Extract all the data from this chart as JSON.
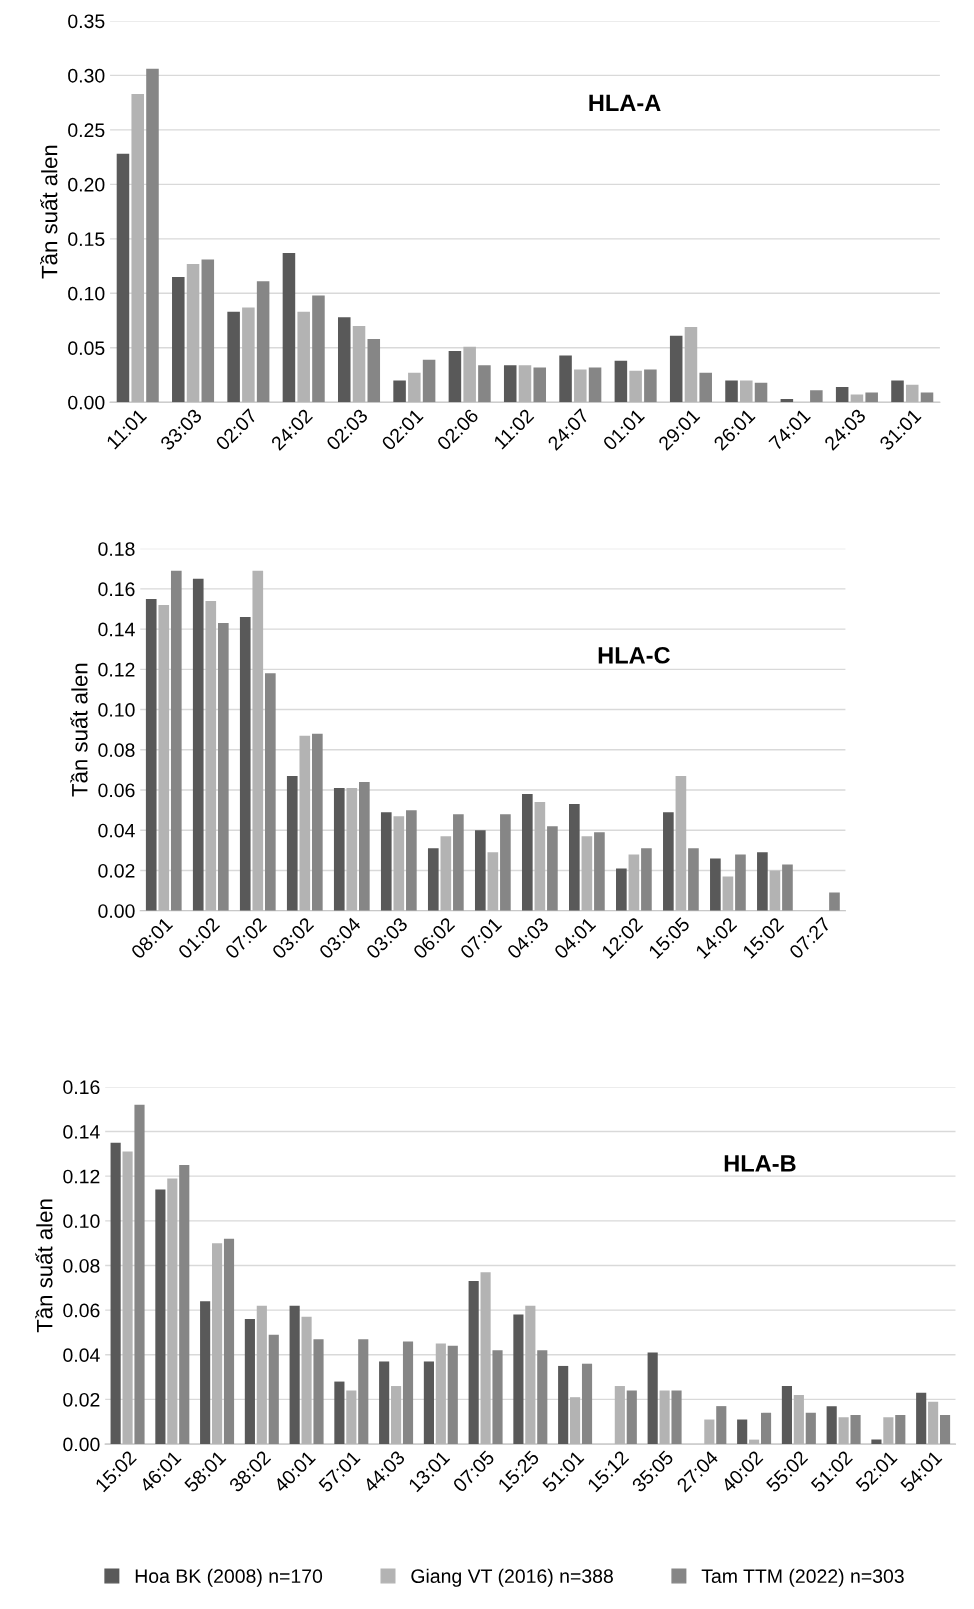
{
  "chart_data": [
    {
      "type": "bar",
      "title": "HLA-A",
      "ylabel": "Tần suất alen",
      "categories": [
        "11:01",
        "33:03",
        "02:07",
        "24:02",
        "02:03",
        "02:01",
        "02:06",
        "11:02",
        "24:07",
        "01:01",
        "29:01",
        "26:01",
        "74:01",
        "24:03",
        "31:01"
      ],
      "series": [
        {
          "color": "#595959",
          "values": [
            0.228,
            0.115,
            0.083,
            0.137,
            0.078,
            0.02,
            0.047,
            0.034,
            0.043,
            0.038,
            0.061,
            0.02,
            0.003,
            0.014,
            0.02
          ]
        },
        {
          "color": "#b3b3b3",
          "values": [
            0.283,
            0.127,
            0.087,
            0.083,
            0.07,
            0.027,
            0.051,
            0.034,
            0.03,
            0.029,
            0.069,
            0.02,
            null,
            0.007,
            0.016
          ]
        },
        {
          "color": "#868686",
          "values": [
            0.306,
            0.131,
            0.111,
            0.098,
            0.058,
            0.039,
            0.034,
            0.032,
            0.032,
            0.03,
            0.027,
            0.018,
            0.011,
            0.009,
            0.009
          ]
        }
      ],
      "ylim": [
        0,
        0.35
      ],
      "yticks": [
        {
          "value": 0,
          "label": "0.00"
        },
        {
          "value": 0.05,
          "label": "0.05"
        },
        {
          "value": 0.1,
          "label": "0.10"
        },
        {
          "value": 0.15,
          "label": "0.15"
        },
        {
          "value": 0.2,
          "label": "0.20"
        },
        {
          "value": 0.25,
          "label": "0.25"
        },
        {
          "value": 0.3,
          "label": "0.30"
        },
        {
          "value": 0.35,
          "label": "0.35"
        }
      ],
      "grid": "y",
      "legend": false
    },
    {
      "type": "bar",
      "title": "HLA-C",
      "ylabel": "Tần suất alen",
      "categories": [
        "08:01",
        "01:02",
        "07:02",
        "03:02",
        "03:04",
        "03:03",
        "06:02",
        "07:01",
        "04:03",
        "04:01",
        "12:02",
        "15:05",
        "14:02",
        "15:02",
        "07:27"
      ],
      "series": [
        {
          "color": "#595959",
          "values": [
            0.155,
            0.165,
            0.146,
            0.067,
            0.061,
            0.049,
            0.031,
            0.04,
            0.058,
            0.053,
            0.021,
            0.049,
            0.026,
            0.029,
            null
          ]
        },
        {
          "color": "#b3b3b3",
          "values": [
            0.152,
            0.154,
            0.169,
            0.087,
            0.061,
            0.047,
            0.037,
            0.029,
            0.054,
            0.037,
            0.028,
            0.067,
            0.017,
            0.02,
            null
          ]
        },
        {
          "color": "#868686",
          "values": [
            0.169,
            0.143,
            0.118,
            0.088,
            0.064,
            0.05,
            0.048,
            0.048,
            0.042,
            0.039,
            0.031,
            0.031,
            0.028,
            0.023,
            0.009
          ]
        }
      ],
      "ylim": [
        0,
        0.18
      ],
      "yticks": [
        {
          "value": 0,
          "label": "0.00"
        },
        {
          "value": 0.02,
          "label": "0.02"
        },
        {
          "value": 0.04,
          "label": "0.04"
        },
        {
          "value": 0.06,
          "label": "0.06"
        },
        {
          "value": 0.08,
          "label": "0.08"
        },
        {
          "value": 0.1,
          "label": "0.10"
        },
        {
          "value": 0.12,
          "label": "0.12"
        },
        {
          "value": 0.14,
          "label": "0.14"
        },
        {
          "value": 0.16,
          "label": "0.16"
        },
        {
          "value": 0.18,
          "label": "0.18"
        }
      ],
      "grid": "y",
      "legend": false
    },
    {
      "type": "bar",
      "title": "HLA-B",
      "ylabel": "Tần suất alen",
      "categories": [
        "15:02",
        "46:01",
        "58:01",
        "38:02",
        "40:01",
        "57:01",
        "44:03",
        "13:01",
        "07:05",
        "15:25",
        "51:01",
        "15:12",
        "35:05",
        "27:04",
        "40:02",
        "55:02",
        "51:02",
        "52:01",
        "54:01"
      ],
      "series": [
        {
          "name": "Hoa BK (2008) n=170",
          "color": "#595959",
          "values": [
            0.135,
            0.114,
            0.064,
            0.056,
            0.062,
            0.028,
            0.037,
            0.037,
            0.073,
            0.058,
            0.035,
            null,
            0.041,
            null,
            0.011,
            0.026,
            0.017,
            0.002,
            0.023
          ]
        },
        {
          "name": "Giang VT (2016) n=388",
          "color": "#b3b3b3",
          "values": [
            0.131,
            0.119,
            0.09,
            0.062,
            0.057,
            0.024,
            0.026,
            0.045,
            0.077,
            0.062,
            0.021,
            0.026,
            0.024,
            0.011,
            0.002,
            0.022,
            0.012,
            0.012,
            0.019
          ]
        },
        {
          "name": "Tam TTM (2022) n=303",
          "color": "#868686",
          "values": [
            0.152,
            0.125,
            0.092,
            0.049,
            0.047,
            0.047,
            0.046,
            0.044,
            0.042,
            0.042,
            0.036,
            0.024,
            0.024,
            0.017,
            0.014,
            0.014,
            0.013,
            0.013,
            0.013
          ]
        }
      ],
      "ylim": [
        0,
        0.16
      ],
      "yticks": [
        {
          "value": 0,
          "label": "0.00"
        },
        {
          "value": 0.02,
          "label": "0.02"
        },
        {
          "value": 0.04,
          "label": "0.04"
        },
        {
          "value": 0.06,
          "label": "0.06"
        },
        {
          "value": 0.08,
          "label": "0.08"
        },
        {
          "value": 0.1,
          "label": "0.10"
        },
        {
          "value": 0.12,
          "label": "0.12"
        },
        {
          "value": 0.14,
          "label": "0.14"
        },
        {
          "value": 0.16,
          "label": "0.16"
        }
      ],
      "grid": "y",
      "legend": "bottom"
    }
  ]
}
